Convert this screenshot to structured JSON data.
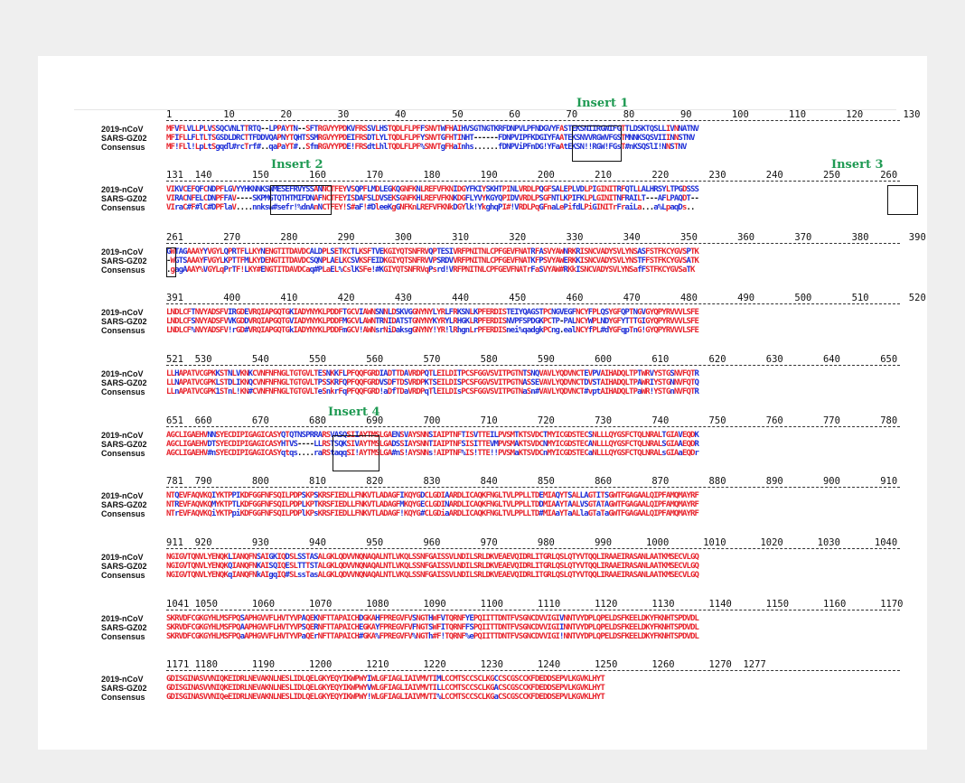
{
  "colors": {
    "identical": "#e8232c",
    "variant": "#1f2fd6",
    "insert_label": "#1f9a53",
    "background": "#efefef"
  },
  "inserts": [
    {
      "label": "Insert 1"
    },
    {
      "label": "Insert 2"
    },
    {
      "label": "Insert 3"
    },
    {
      "label": "Insert 4"
    }
  ],
  "blocks": [
    {
      "numbers": "1         10        20        30        40        50        60        70        80        90       100       110       120       130",
      "rows": [
        {
          "label": "2019-nCoV",
          "seq": "MFVFLVLLPLVSSQCVNLTTRTQ--LPPAYTN--SFTRGVYYPDKVFRSSVLHSTQDLFLPFFSNVTWFHAIHVSGTNGTKRFDNPVLPFNDGVYFASTEKSNIIRGWIFGTTLDSKTQSLLIVNNATNV"
        },
        {
          "label": "SARS-GZ02",
          "seq": "MFIFLLFLTLTSGSDLDRCTTFDDVQAPNYTQHTSSMRGVYYPDEIFRSDTLYLTQDLFLPFYSNVTGFHTINHT------FDNPVIPFKDGIYFAATEKSNVVRGWVFGSTMNNKSQSVIIINNSTNV"
        },
        {
          "label": "Consensus",
          "seq": "MF!FLl!LpLtSgqdl#rcTrf#..qaPaYT#..SfmRGVYYPDE!FRSdtLhlTQDLFLPF%SNVTgFHaInhs......fDNPViPFnDG!YFaAtEKSN!!RGW!FGsT#nKSQSlI!NNSTNV"
        }
      ]
    },
    {
      "numbers": "131  140       150       160       170       180       190       200       210       220       230       240       250       260",
      "rows": [
        {
          "label": "2019-nCoV",
          "seq": "VIKVCEFQFCNDPFLGVYYHKNNKSWMESEFRVYSSANNCTFEYVSQPFLMDLEGKQGNFKNLREFVFKNIDGYFKIYSKHTPINLVRDLPQGFSALEPLVDLPIGINITRFQTLLALHRSYLTPGDSSS"
        },
        {
          "label": "SARS-GZ02",
          "seq": "VIRACNFELCDNPFFAV----SKPMGTQTHTMIFDNAFNCTFEYISDAFSLDVSEKSGNFKHLREFVFKNKDGFLYVYKGYQPIDVVRDLPSGFNTLKPIFKLPLGINITNFRAILT---AFLPAQDT--"
        },
        {
          "label": "Consensus",
          "seq": "VIraC#F#lC#DPFlaV....nnksw#sefr!%dnAnNCTFEY!S#aF!#DleeKgGNFKnLREFVFKNkDGYlk!YkghqPI#!VRDLPqGFnaLePifdLPiGINITrFraiLa...a%LpaqDs.."
        }
      ]
    },
    {
      "numbers": "261       270       280       290       300       310       320       330       340       350       360       370       380       390",
      "rows": [
        {
          "label": "2019-nCoV",
          "seq": "GWTAGAAAYYVGYLQPRTFLLKYNENGTITDAVDCALDPLSETKCTLKSFTVEKGIYQTSNFRVQPTESIVRFPNITNLCPFGEVFNATRFASVYAWNRKRISNCVADYSVLYNSASFSTFKCYGVSPTK"
        },
        {
          "label": "SARS-GZ02",
          "seq": "-WGTSAAAYFVGYLKPTTFMLKYDENGTITDAVDCSQNPLAELKCSVKSFEIDKGIYQTSNFRVVPSRDVVRFPNITNLCPFGEVFNATKFPSVYAWERKKISNCVADYSVLYNSTFFSTFKCYGVSATK"
        },
        {
          "label": "Consensus",
          "seq": ".gagAAAY%VGYLqPrTF!LKY#ENGTITDAVDCaq#PLaEL%CslKSFe!#KGIYQTSNFRVqPsrd!VRFPNITNLCPFGEVFNATrFaSVYAW#RKkISNCVADYSVLYNSafFSTFKCYGVSaTK"
        }
      ]
    },
    {
      "numbers": "391       400       410       420       430       440       450       460       470       480       490       500       510       520",
      "rows": [
        {
          "label": "2019-nCoV",
          "seq": "LNDLCFTNVYADSFVIRGDEVRQIAPGQTGKIADYNYKLPDDFTGCVIAWNSNNLDSKVGGNYNYLYRLFRKSNLKPFERDISTEIYQAGSTPCNGVEGFNCYFPLQSYGFQPTNGVGYQPYRVVVLSFE"
        },
        {
          "label": "SARS-GZ02",
          "seq": "LNDLCFSNVYADSFVVKGDDVRQIAPGQTGVIADYNYKLPDDFMGCVLAWNTRNIDATSTGNYNYKYRYLRHGKLRPFERDISNVPFSPDGKPCTP-PALNCYWPLNDYGFYTTTGIGYQPYRVVVLSFE"
        },
        {
          "label": "Consensus",
          "seq": "LNDLCF%NVYADSFV!rGD#VRQIAPGQTGkIADYNYKLPDDFmGCV!AWNsrNiDaksgGNYNY!YR!lRhgnLrPFERDISnei%qadgkPCng.ealNCYfPL#dYGFqpTnG!GYQPYRVVVLSFE"
        }
      ]
    },
    {
      "numbers": "521  530       540       550       560       570       580       590       600       610       620       630       640       650",
      "rows": [
        {
          "label": "2019-nCoV",
          "seq": "LLHAPATVCGPKKSTNLVKNKCVNFNFNGLTGTGVLTESNKKFLPFQQFGRDIADTTDAVRDPQTLEILDITPCSFGGVSVITPGTNTSNQVAVLYQDVNCTEVPVAIHADQLTPTWRVYSTGSNVFQTR"
        },
        {
          "label": "SARS-GZ02",
          "seq": "LLNAPATVCGPKLSTDLIKNQCVNFNFNGLTGTGVLTPSSKRFQPFQQFGRDVSDFTDSVRDPKTSEILDISPCSFGGVSVITPGTNASSEVAVLYQDVNCTDVSTAIHADQLTPAWRIYSTGNNVFQTQ"
        },
        {
          "label": "Consensus",
          "seq": "LLnAPATVCGPK1STnL!KN#CVNFNFNGLTGTGVLTeSnkrFqPFQQFGRD!aDfTDaVRDPqTlEILDIsPCSFGGVSVITPGTNaSn#VAVLYQDVNCT#vptAIHADQLTPaWR!YSTGnNVFQTR"
        }
      ]
    },
    {
      "numbers": "651  660       670       680       690       700       710       720       730       740       750       760       770       780",
      "rows": [
        {
          "label": "2019-nCoV",
          "seq": "AGCLIGAEHVNNSYECDIPIGAGICASYQTQTNSPRRARSVASQSIIAYTMSLGAENSVAYSNNSIAIPTNFTISVTTEILPVSMTKTSVDCTMYICGDSTECSNLLLQYGSFCTQLNRALTGIAVEQDK"
        },
        {
          "label": "SARS-GZ02",
          "seq": "AGCLIGAEHVDTSYECDIPIGAGICASYHTVS----LLRSTSQKSIVAYTMSLGADSSIAYSNNTIAIPTNFSISITTEVMPVSMAKTSVDCNMYICGDSTECANLLLQYGSFCTQLNRALSGIAAEQDR"
        },
        {
          "label": "Consensus",
          "seq": "AGCLIGAEHV#nSYECDIPIGAGICASYqtqs....raRStaqqSI!AYTMSLGA#nS!AYSNNs!AIPTNF%IS!TTE!!PVSMaKTSVDCnMYICGDSTECaNLLLQYGSFCTQLNRALsGIAaEQDr"
        }
      ]
    },
    {
      "numbers": "781  790       800       810       820       830       840       850       860       870       880       890       900       910",
      "rows": [
        {
          "label": "2019-nCoV",
          "seq": "NTQEVFAQVKQIYKTPPIKDFGGFNFSQILPDPSKPSKRSFIEDLLFNKVTLADAGFIKQYGDCLGDIAARDLICAQKFNGLTVLPPLLTDEMIAQYTSALLAGTITSGWTFGAGAALQIPFAMQMAYRF"
        },
        {
          "label": "SARS-GZ02",
          "seq": "NTREVFAQVKQMYKTPTLKDFGGFNFSQILPDPLKPTKRSFIEDLLFNKVTLADAGFMKQYGECLGDINARDLICAQKFNGLTVLPPLLTDDMIAAYTAALVSGTATAGWTFGAGAALQIPFAMQMAYRF"
        },
        {
          "label": "Consensus",
          "seq": "NTrEVFAQVKQiYKTPpiKDFGGFNFSQILPDPlKPsKRSFIEDLLFNKVTLADAGF!KQYG#CLGDiaARDLICAQKFNGLTVLPPLLTD#MIAaYTaALlaGTaTaGWTFGAGAALQIPFAMQMAYRF"
        }
      ]
    },
    {
      "numbers": "911  920       930       940       950       960       970       980       990      1000      1010      1020      1030      1040",
      "rows": [
        {
          "label": "2019-nCoV",
          "seq": "NGIGVTQNVLYENQKLIANQFNSAIGKIQDSLSSTASALGKLQDVVNQNAQALNTLVKQLSSNFGAISSVLNDILSRLDKVEAEVQIDRLITGRLQSLQTYVTQQLIRAAEIRASANLAATKMSECVLGQ"
        },
        {
          "label": "SARS-GZ02",
          "seq": "NGIGVTQNVLYENQKQIANQFNKAISQIQESLTTTSTALGKLQDVVNQNAQALNTLVKQLSSNFGAISSVLNDILSRLDKVEAEVQIDRLITGRLQSLQTYVTQQLIRAAEIRASANLAATKMSECVLGQ"
        },
        {
          "label": "Consensus",
          "seq": "NGIGVTQNVLYENQKqIANQFNkAIgqIQ#SLssTasALGKLQDVVNQNAQALNTLVKQLSSNFGAISSVLNDILSRLDKVEAEVQIDRLITGRLQSLQTYVTQQLIRAAEIRASANLAATKMSECVLGQ"
        }
      ]
    },
    {
      "numbers": "1041 1050      1060      1070      1080      1090      1100      1110      1120      1130      1140      1150      1160      1170",
      "rows": [
        {
          "label": "2019-nCoV",
          "seq": "SKRVDFCGKGYHLMSFPQSAPHGVVFLHVTYVPAQEKNFTTAPAICHDGKAHFPREGVFVSNGTHWFVTQRNFYEPQIITTDNTFVSGNCDVVIGIVNNTVYDPLQPELDSFKEELDKYFKNHTSPDVDL"
        },
        {
          "label": "SARS-GZ02",
          "seq": "SKRVDFCGKGYHLMSFPQAAPHGVVFLHVTYVPSQERNFTTAPAICHEGKAYFPREGVFVFNGTSWFITQRNFFSPQIITTDNTFVSGNCDVVIGIINNTVYDPLQPELDSFKEELDKYFKNHTSPDVDL"
        },
        {
          "label": "Consensus",
          "seq": "SKRVDFCGKGYHLMSFPQaAPHGVVFLHVTYVPaQErNFTTAPAICH#GKA%FPREGVFV%NGTh#F!TQRNF%ePQIITTDNTFVSGNCDVVIGI!NNTVYDPLQPELDSFKEELDKYFKNHTSPDVDL"
        }
      ]
    },
    {
      "numbers": "1171 1180      1190      1200      1210      1220      1230      1240      1250      1260      1270  1277",
      "rows": [
        {
          "label": "2019-nCoV",
          "seq": "GDISGINASVVNIQKEIDRLNEVAKNLNESLIDLQELGKYEQYIKWPWYIWLGFIAGLIAIVMVTIMLCCMTSCCSCLKGCCSCGSCCKFDEDDSEPVLKGVKLHYT"
        },
        {
          "label": "SARS-GZ02",
          "seq": "GDISGINASVVNIQKEIDRLNEVAKNLNESLIDLQELGKYEQYIKWPWYVWLGFIAGLIAIVMVTILLCCMTSCCSCLKGACSCGSCCKFDEDDSEPVLKGVKLHYT"
        },
        {
          "label": "Consensus",
          "seq": "GDISGINASVVNIQeEIDRLNEVAKNLNESLIDLQELGKYEQYIKWPWY!WLGFIAGLIAIVMVTI%LCCMTSCCSCLKGaCSCGSCCKFDEDDSEPVLKGVKLHYT"
        }
      ]
    }
  ]
}
